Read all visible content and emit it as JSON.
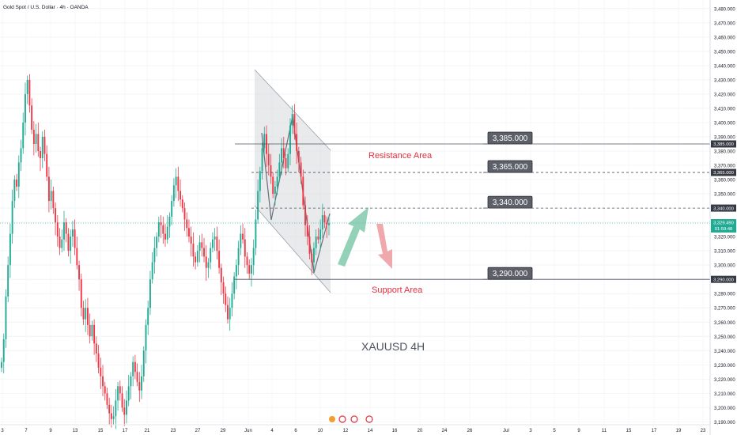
{
  "header": {
    "symbol": "Gold Spot / U.S. Dollar · 4h · OANDA"
  },
  "chart_data": {
    "type": "candlestick",
    "ylim": [
      3188,
      3486
    ],
    "y_ticks": [
      3190,
      3200,
      3210,
      3220,
      3230,
      3240,
      3250,
      3260,
      3270,
      3280,
      3290,
      3300,
      3310,
      3320,
      3330,
      3340,
      3350,
      3360,
      3370,
      3380,
      3390,
      3400,
      3410,
      3420,
      3430,
      3440,
      3450,
      3460,
      3470,
      3480
    ],
    "y_tick_labels": [
      "3,190.000",
      "3,200.000",
      "3,210.000",
      "3,220.000",
      "3,230.000",
      "3,240.000",
      "3,250.000",
      "3,260.000",
      "3,270.000",
      "3,280.000",
      "3,290.000",
      "3,300.000",
      "3,310.000",
      "3,320.000",
      "3,330.000",
      "3,340.000",
      "3,350.000",
      "3,360.000",
      "3,370.000",
      "3,380.000",
      "3,390.000",
      "3,400.000",
      "3,410.000",
      "3,420.000",
      "3,430.000",
      "3,440.000",
      "3,450.000",
      "3,460.000",
      "3,470.000",
      "3,480.000"
    ],
    "x_ticks": [
      "3",
      "7",
      "9",
      "13",
      "15",
      "17",
      "21",
      "23",
      "27",
      "29",
      "Jun",
      "4",
      "6",
      "10",
      "12",
      "14",
      "16",
      "20",
      "24",
      "26",
      "Jul",
      "3",
      "5",
      "9",
      "11",
      "15",
      "17",
      "19",
      "23"
    ],
    "current_price": 3329.49,
    "countdown": "01:59:48",
    "levels": [
      {
        "value": 3385,
        "label": "3,385.000",
        "axis_label": "3,385.000",
        "style": "solid"
      },
      {
        "value": 3365,
        "label": "3,365.000",
        "axis_label": "3,365.000",
        "style": "dashed"
      },
      {
        "value": 3340,
        "label": "3,340.000",
        "axis_label": "3,340.000",
        "style": "dashed"
      },
      {
        "value": 3290,
        "label": "3,290.000",
        "axis_label": "3,290.000",
        "style": "solid"
      }
    ],
    "current_label": "3,329.490",
    "annotations": {
      "resistance": "Resistance Area",
      "support": "Support Area",
      "title": "XAUUSD 4H"
    },
    "series_closes": [
      3232,
      3248,
      3278,
      3300,
      3322,
      3345,
      3360,
      3355,
      3372,
      3382,
      3400,
      3420,
      3430,
      3412,
      3395,
      3385,
      3392,
      3380,
      3375,
      3390,
      3378,
      3362,
      3345,
      3352,
      3340,
      3330,
      3320,
      3312,
      3318,
      3330,
      3322,
      3310,
      3320,
      3325,
      3312,
      3300,
      3290,
      3270,
      3262,
      3270,
      3258,
      3250,
      3258,
      3245,
      3238,
      3228,
      3222,
      3215,
      3210,
      3202,
      3196,
      3192,
      3194,
      3205,
      3215,
      3210,
      3200,
      3195,
      3205,
      3215,
      3222,
      3232,
      3225,
      3218,
      3212,
      3222,
      3240,
      3258,
      3270,
      3290,
      3302,
      3312,
      3320,
      3330,
      3328,
      3322,
      3318,
      3327,
      3334,
      3345,
      3356,
      3362,
      3352,
      3346,
      3340,
      3332,
      3326,
      3320,
      3315,
      3306,
      3302,
      3310,
      3316,
      3312,
      3306,
      3298,
      3302,
      3312,
      3318,
      3320,
      3310,
      3298,
      3288,
      3280,
      3272,
      3262,
      3270,
      3280,
      3292,
      3300,
      3312,
      3322,
      3318,
      3306,
      3300,
      3294,
      3300,
      3312,
      3332,
      3352,
      3366,
      3382,
      3392,
      3378,
      3370,
      3362,
      3350,
      3355,
      3362,
      3372,
      3382,
      3375,
      3368,
      3378,
      3398,
      3406,
      3392,
      3380,
      3372,
      3362,
      3342,
      3328,
      3320,
      3308,
      3302,
      3312,
      3320,
      3318,
      3325,
      3335,
      3330,
      3328,
      3329.49
    ]
  }
}
